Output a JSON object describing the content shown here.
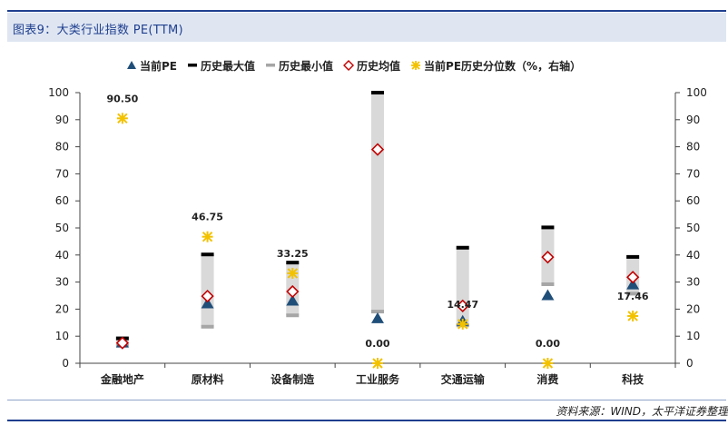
{
  "header": {
    "title": "图表9：大类行业指数 PE(TTM)"
  },
  "source": "资料来源：WIND，太平洋证券整理",
  "chart_data": {
    "type": "scatter",
    "categories": [
      "金融地产",
      "原材料",
      "设备制造",
      "工业服务",
      "交通运输",
      "消费",
      "科技"
    ],
    "ylim": [
      0,
      100
    ],
    "y_ticks": [
      0,
      10,
      20,
      30,
      40,
      50,
      60,
      70,
      80,
      90,
      100
    ],
    "y2lim": [
      0,
      100
    ],
    "y2_ticks": [
      0,
      10,
      20,
      30,
      40,
      50,
      60,
      70,
      80,
      90,
      100
    ],
    "legend_position": "top",
    "series": [
      {
        "name": "当前PE",
        "marker": "triangle",
        "color": "#1f4e79",
        "axis": "left",
        "values": [
          7.5,
          22.0,
          23.0,
          16.5,
          15.5,
          25.0,
          29.0
        ]
      },
      {
        "name": "历史最大值",
        "marker": "dash",
        "color": "#000000",
        "axis": "left",
        "values": [
          9.2,
          40.2,
          37.2,
          100.0,
          42.7,
          50.2,
          39.3
        ]
      },
      {
        "name": "历史最小值",
        "marker": "dash",
        "color": "#a6a6a6",
        "axis": "left",
        "values": [
          6.5,
          13.5,
          17.7,
          19.1,
          14.0,
          29.2,
          25.7
        ]
      },
      {
        "name": "历史均值",
        "marker": "diamond",
        "color": "#c00000",
        "axis": "left",
        "values": [
          7.5,
          24.8,
          26.5,
          79.0,
          21.2,
          39.2,
          31.8
        ]
      },
      {
        "name": "当前PE历史分位数（%，右轴）",
        "marker": "asterisk",
        "color": "#f2c200",
        "axis": "right",
        "values": [
          90.5,
          46.75,
          33.25,
          0.0,
          14.47,
          0.0,
          17.46
        ]
      }
    ],
    "data_labels": [
      "90.50",
      "46.75",
      "33.25",
      "0.00",
      "14.47",
      "0.00",
      "17.46"
    ]
  }
}
